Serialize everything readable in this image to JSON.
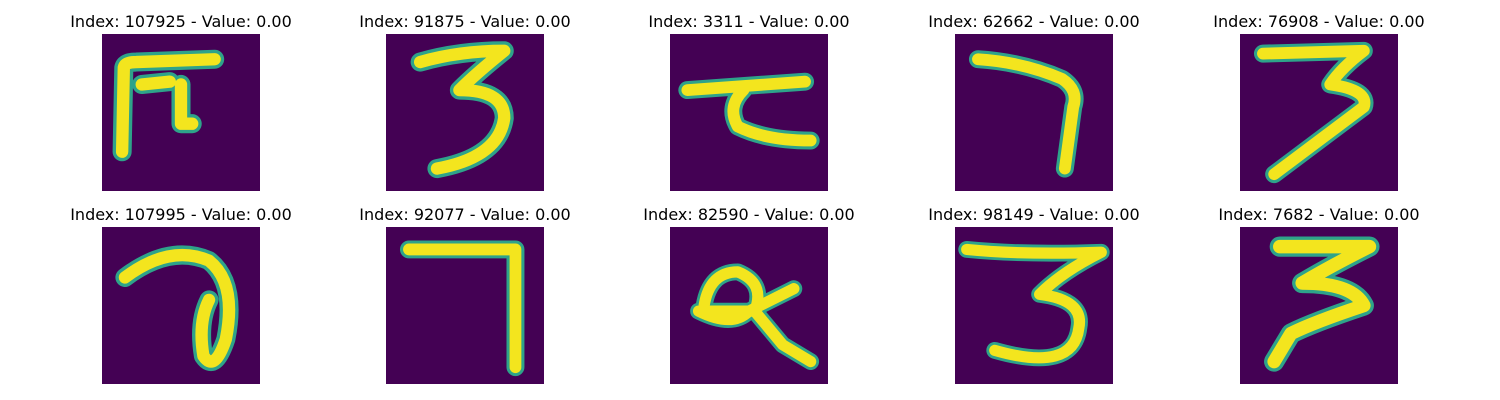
{
  "figure": {
    "panels": [
      {
        "title": "Index: 107925 - Value: 0.00",
        "glyph": "handwritten-glyph"
      },
      {
        "title": "Index: 91875 - Value: 0.00",
        "glyph": "handwritten-3"
      },
      {
        "title": "Index: 3311 - Value: 0.00",
        "glyph": "handwritten-glyph"
      },
      {
        "title": "Index: 62662 - Value: 0.00",
        "glyph": "handwritten-7"
      },
      {
        "title": "Index: 76908 - Value: 0.00",
        "glyph": "handwritten-3"
      },
      {
        "title": "Index: 107995 - Value: 0.00",
        "glyph": "handwritten-glyph"
      },
      {
        "title": "Index: 92077 - Value: 0.00",
        "glyph": "handwritten-7"
      },
      {
        "title": "Index: 82590 - Value: 0.00",
        "glyph": "handwritten-glyph"
      },
      {
        "title": "Index: 98149 - Value: 0.00",
        "glyph": "handwritten-3"
      },
      {
        "title": "Index: 7682 - Value: 0.00",
        "glyph": "handwritten-3"
      }
    ],
    "colors": {
      "background": "#440154",
      "stroke": "#f3e51e",
      "edge": "#2ea38a"
    }
  }
}
